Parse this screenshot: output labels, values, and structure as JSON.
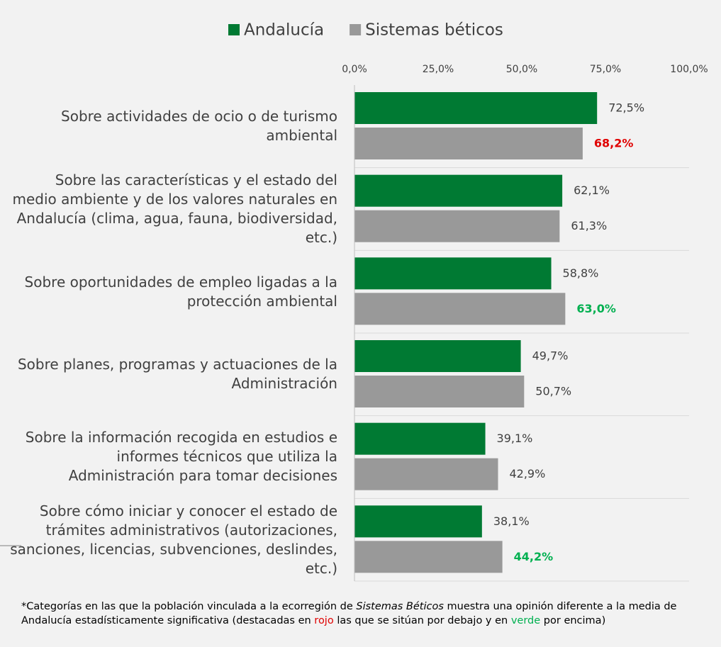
{
  "chart_data": {
    "type": "hbar",
    "categories": [
      "Sobre actividades de ocio o de turismo ambiental",
      "Sobre las características y el estado del medio ambiente y de los valores naturales en Andalucía (clima, agua, fauna, biodiversidad, etc.)",
      "Sobre oportunidades de empleo ligadas a la protección ambiental",
      "Sobre planes, programas y actuaciones de la Administración",
      "Sobre la información recogida en estudios e informes técnicos que utiliza la Administración para tomar decisiones",
      "Sobre cómo iniciar y conocer el estado de trámites administrativos (autorizaciones, sanciones, licencias, subvenciones, deslindes, etc.)"
    ],
    "series": [
      {
        "name": "Andalucía",
        "color": "#007a33",
        "values": [
          72.5,
          62.1,
          58.8,
          49.7,
          39.1,
          38.1
        ],
        "value_labels": [
          "72,5%",
          "62,1%",
          "58,8%",
          "49,7%",
          "39,1%",
          "38,1%"
        ],
        "label_colors": [
          "#404040",
          "#404040",
          "#404040",
          "#404040",
          "#404040",
          "#404040"
        ]
      },
      {
        "name": "Sistemas béticos",
        "color": "#999999",
        "values": [
          68.2,
          61.3,
          63.0,
          50.7,
          42.9,
          44.2
        ],
        "value_labels": [
          "68,2%",
          "61,3%",
          "63,0%",
          "50,7%",
          "42,9%",
          "44,2%"
        ],
        "label_colors": [
          "#e00000",
          "#404040",
          "#00b050",
          "#404040",
          "#404040",
          "#00b050"
        ]
      }
    ],
    "xlim": [
      0,
      100
    ],
    "xticks": [
      {
        "value": 0,
        "label": "0,0%"
      },
      {
        "value": 25,
        "label": "25,0%"
      },
      {
        "value": 50,
        "label": "50,0%"
      },
      {
        "value": 75,
        "label": "75,0%"
      },
      {
        "value": 100,
        "label": "100,0%"
      }
    ],
    "legend": "top",
    "note": [
      "*Categorías en las que la población vinculada a la ecorregión de ",
      "Sistemas Béticos",
      " muestra una opinión diferente a la media de Andalucía estadísticamente significativa (destacadas en ",
      "rojo",
      " las que se sitúan por debajo y en ",
      "verde",
      " por encima)"
    ]
  }
}
